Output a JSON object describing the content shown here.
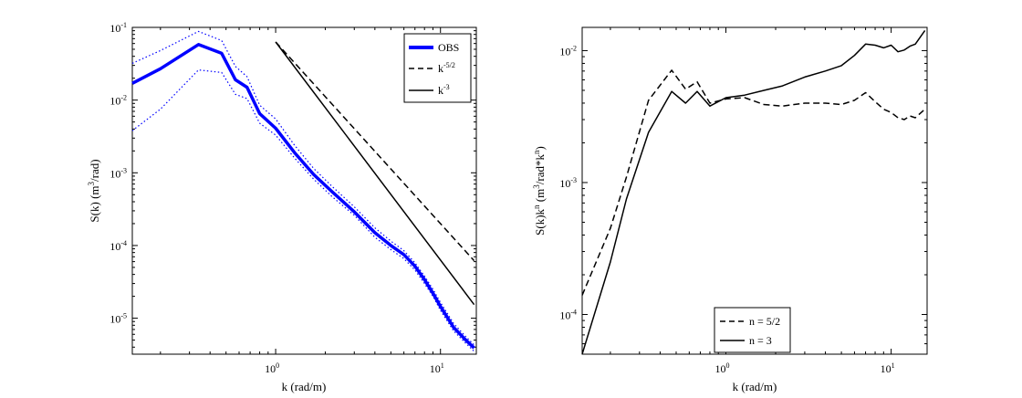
{
  "chart_data": [
    {
      "type": "line",
      "xscale": "log",
      "yscale": "log",
      "xlim": [
        0.135,
        16.5
      ],
      "ylim": [
        3.2e-06,
        0.1
      ],
      "xlabel": "k (rad/m)",
      "ylabel": {
        "main": "S(k)  (m",
        "sup": "3",
        "tail": "/rad)"
      },
      "xticks": [
        {
          "value": 1,
          "base": "10",
          "exp": "0"
        },
        {
          "value": 10,
          "base": "10",
          "exp": "1"
        }
      ],
      "yticks": [
        {
          "value": 1e-05,
          "base": "10",
          "exp": "-5"
        },
        {
          "value": 0.0001,
          "base": "10",
          "exp": "-4"
        },
        {
          "value": 0.001,
          "base": "10",
          "exp": "-3"
        },
        {
          "value": 0.01,
          "base": "10",
          "exp": "-2"
        },
        {
          "value": 0.1,
          "base": "10",
          "exp": "-1"
        }
      ],
      "legend": {
        "position": "top-right",
        "entries": [
          {
            "label": "OBS",
            "sup": ""
          },
          {
            "label": "k",
            "sup": "-5/2"
          },
          {
            "label": "k",
            "sup": "-3"
          }
        ]
      },
      "series": [
        {
          "name": "OBS",
          "color": "#0000ff",
          "style": "solid-thick",
          "x": [
            0.135,
            0.2,
            0.34,
            0.47,
            0.57,
            0.67,
            0.8,
            1.0,
            1.3,
            1.7,
            2.2,
            3.0,
            4.0,
            5.0,
            6.0,
            7.0,
            8.0,
            9.0,
            10.0,
            12.0,
            14.0,
            16.0
          ],
          "y": [
            0.017,
            0.027,
            0.058,
            0.044,
            0.019,
            0.015,
            0.0065,
            0.0041,
            0.0019,
            0.00095,
            0.00055,
            0.00029,
            0.00015,
            0.0001,
            7.5e-05,
            5.2e-05,
            3.4e-05,
            2.2e-05,
            1.45e-05,
            7.5e-06,
            5.2e-06,
            3.9e-06
          ]
        },
        {
          "name": "OBS upper bound",
          "color": "#0000ff",
          "style": "dotted",
          "x": [
            0.135,
            0.2,
            0.34,
            0.47,
            0.57,
            0.67,
            0.8,
            1.0,
            1.3,
            1.7,
            2.2,
            3.0,
            4.0,
            5.0,
            6.0,
            7.0,
            8.0,
            9.0,
            10.0,
            12.0,
            14.0,
            16.0
          ],
          "y": [
            0.032,
            0.048,
            0.088,
            0.066,
            0.029,
            0.021,
            0.0085,
            0.0055,
            0.0024,
            0.00115,
            0.00065,
            0.00034,
            0.000175,
            0.000115,
            8.5e-05,
            5.8e-05,
            3.8e-05,
            2.5e-05,
            1.65e-05,
            8.5e-06,
            5.8e-06,
            4.3e-06
          ]
        },
        {
          "name": "OBS lower bound",
          "color": "#0000ff",
          "style": "dotted",
          "x": [
            0.135,
            0.2,
            0.34,
            0.47,
            0.57,
            0.67,
            0.8,
            1.0,
            1.3,
            1.7,
            2.2,
            3.0,
            4.0,
            5.0,
            6.0,
            7.0,
            8.0,
            9.0,
            10.0,
            12.0,
            14.0,
            16.0
          ],
          "y": [
            0.0038,
            0.0075,
            0.026,
            0.024,
            0.012,
            0.0105,
            0.0048,
            0.0033,
            0.0016,
            0.00082,
            0.00047,
            0.00026,
            0.00013,
            8.8e-05,
            6.6e-05,
            4.6e-05,
            3e-05,
            2e-05,
            1.28e-05,
            6.7e-06,
            4.7e-06,
            3.5e-06
          ]
        },
        {
          "name": "k^-5/2",
          "color": "#000000",
          "style": "dashed",
          "x": [
            1.0,
            16.0
          ],
          "y": [
            0.063,
            6.18e-05
          ]
        },
        {
          "name": "k^-3",
          "color": "#000000",
          "style": "solid",
          "x": [
            1.0,
            16.0
          ],
          "y": [
            0.063,
            1.54e-05
          ]
        }
      ]
    },
    {
      "type": "line",
      "xscale": "log",
      "yscale": "log",
      "xlim": [
        0.135,
        16.5
      ],
      "ylim": [
        5e-05,
        0.015
      ],
      "xlabel": "k (rad/m)",
      "ylabel": {
        "main": "S(k)k",
        "sup": "n",
        "mid": " (m",
        "sup2": "3",
        "tail": "/rad*k",
        "sup3": "n",
        "end": ")"
      },
      "xticks": [
        {
          "value": 1,
          "base": "10",
          "exp": "0"
        },
        {
          "value": 10,
          "base": "10",
          "exp": "1"
        }
      ],
      "yticks": [
        {
          "value": 0.0001,
          "base": "10",
          "exp": "-4"
        },
        {
          "value": 0.001,
          "base": "10",
          "exp": "-3"
        },
        {
          "value": 0.01,
          "base": "10",
          "exp": "-2"
        }
      ],
      "legend": {
        "position": "bottom-center",
        "entries": [
          {
            "label": "n = 5/2"
          },
          {
            "label": "n = 3"
          }
        ]
      },
      "series": [
        {
          "name": "n = 5/2",
          "color": "#000000",
          "style": "dashed",
          "x": [
            0.135,
            0.2,
            0.25,
            0.34,
            0.47,
            0.57,
            0.67,
            0.8,
            1.0,
            1.3,
            1.7,
            2.2,
            3.0,
            4.0,
            5.0,
            6.0,
            7.0,
            8.0,
            9.0,
            10.0,
            11.0,
            12.0,
            13.0,
            14.0,
            16.0
          ],
          "y": [
            0.00014,
            0.00045,
            0.0011,
            0.0042,
            0.0071,
            0.0051,
            0.0058,
            0.004,
            0.0043,
            0.0044,
            0.0039,
            0.0038,
            0.004,
            0.004,
            0.0039,
            0.0042,
            0.0048,
            0.0041,
            0.0036,
            0.0034,
            0.0031,
            0.003,
            0.0032,
            0.0031,
            0.0036
          ]
        },
        {
          "name": "n = 3",
          "color": "#000000",
          "style": "solid",
          "x": [
            0.135,
            0.2,
            0.25,
            0.34,
            0.47,
            0.57,
            0.67,
            0.8,
            1.0,
            1.3,
            1.7,
            2.2,
            3.0,
            4.0,
            5.0,
            6.0,
            7.0,
            8.0,
            9.0,
            10.0,
            11.0,
            12.0,
            13.0,
            14.0,
            16.0
          ],
          "y": [
            5e-05,
            0.00025,
            0.00075,
            0.0024,
            0.0049,
            0.004,
            0.0049,
            0.0038,
            0.0044,
            0.0046,
            0.005,
            0.0054,
            0.0063,
            0.007,
            0.0077,
            0.0092,
            0.0112,
            0.011,
            0.0105,
            0.011,
            0.0098,
            0.0101,
            0.0108,
            0.0112,
            0.0142
          ]
        }
      ]
    }
  ]
}
